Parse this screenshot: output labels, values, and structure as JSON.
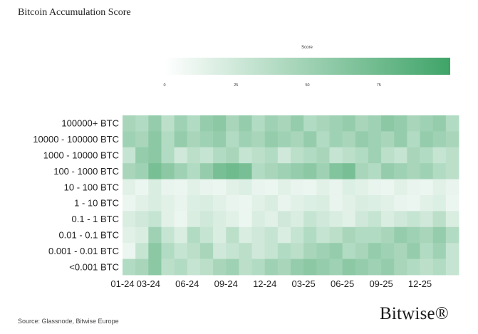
{
  "title": "Bitcoin Accumulation Score",
  "source": "Source: Glassnode, Bitwise Europe",
  "brand": "Bitwise®",
  "colors": {
    "low": "#ffffff",
    "high": "#3fa468"
  },
  "chart_data": {
    "type": "heatmap",
    "colorbar": {
      "title": "Score",
      "ticks": [
        0,
        25,
        50,
        75
      ],
      "range": [
        0,
        100
      ]
    },
    "rows": [
      "100000+ BTC",
      "10000 - 100000 BTC",
      "1000 - 10000 BTC",
      "100 - 1000 BTC",
      "10 - 100 BTC",
      "1 - 10 BTC",
      "0.1 - 1 BTC",
      "0.01 - 0.1 BTC",
      "0.001 - 0.01 BTC",
      "<0.001 BTC"
    ],
    "x_ticks": [
      "01-24",
      "03-24",
      "06-24",
      "09-24",
      "12-24",
      "03-25",
      "06-25",
      "09-25",
      "12-25"
    ],
    "columns": [
      "01-24",
      "02-24",
      "03-24",
      "04-24",
      "05-24",
      "06-24",
      "07-24",
      "08-24",
      "09-24",
      "10-24",
      "11-24",
      "12-24",
      "01-25",
      "02-25",
      "03-25",
      "04-25",
      "05-25",
      "06-25",
      "07-25",
      "08-25",
      "09-25",
      "10-25",
      "11-25",
      "12-25",
      "01-26",
      "02-26"
    ],
    "values": [
      [
        45,
        40,
        55,
        35,
        50,
        40,
        55,
        60,
        45,
        55,
        40,
        50,
        45,
        55,
        40,
        45,
        50,
        55,
        45,
        50,
        60,
        55,
        45,
        50,
        55,
        40
      ],
      [
        50,
        45,
        60,
        40,
        55,
        45,
        50,
        55,
        40,
        50,
        45,
        55,
        50,
        45,
        55,
        40,
        50,
        45,
        55,
        50,
        45,
        55,
        40,
        55,
        50,
        45
      ],
      [
        30,
        55,
        60,
        40,
        25,
        35,
        30,
        40,
        45,
        30,
        35,
        40,
        25,
        35,
        40,
        45,
        30,
        35,
        40,
        50,
        35,
        30,
        45,
        40,
        30,
        35
      ],
      [
        45,
        50,
        70,
        60,
        50,
        40,
        55,
        70,
        75,
        70,
        40,
        45,
        50,
        55,
        60,
        50,
        65,
        70,
        45,
        40,
        55,
        50,
        45,
        50,
        40,
        35
      ],
      [
        15,
        10,
        20,
        12,
        10,
        15,
        12,
        10,
        15,
        18,
        12,
        10,
        15,
        12,
        10,
        15,
        12,
        18,
        15,
        12,
        10,
        15,
        12,
        10,
        15,
        12
      ],
      [
        10,
        15,
        20,
        15,
        12,
        18,
        20,
        15,
        12,
        10,
        15,
        20,
        12,
        15,
        18,
        20,
        12,
        15,
        20,
        18,
        15,
        12,
        10,
        15,
        18,
        10
      ],
      [
        20,
        25,
        30,
        15,
        10,
        20,
        25,
        20,
        15,
        10,
        20,
        15,
        25,
        20,
        30,
        25,
        20,
        15,
        25,
        30,
        20,
        25,
        30,
        25,
        35,
        20
      ],
      [
        15,
        20,
        50,
        30,
        20,
        40,
        30,
        20,
        35,
        20,
        25,
        30,
        20,
        30,
        40,
        30,
        35,
        45,
        40,
        40,
        45,
        55,
        50,
        45,
        55,
        40
      ],
      [
        10,
        30,
        60,
        40,
        30,
        35,
        45,
        25,
        30,
        35,
        25,
        30,
        40,
        35,
        45,
        50,
        55,
        40,
        45,
        55,
        50,
        45,
        55,
        40,
        50,
        30
      ],
      [
        40,
        45,
        60,
        35,
        40,
        30,
        35,
        45,
        50,
        35,
        40,
        50,
        45,
        55,
        60,
        55,
        50,
        60,
        55,
        50,
        55,
        45,
        40,
        35,
        40,
        30
      ]
    ]
  }
}
